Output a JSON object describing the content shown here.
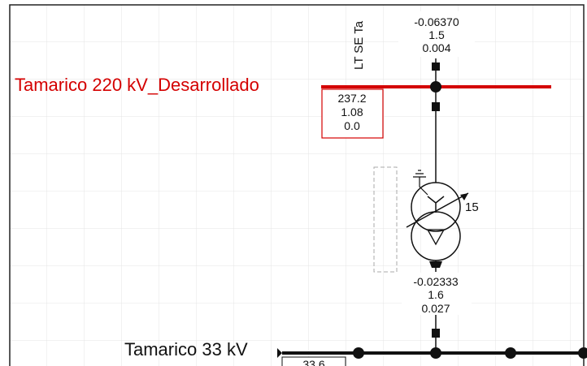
{
  "bus_high": {
    "name": "Tamarico 220 kV_Desarrollado",
    "results": [
      "237.2",
      "1.08",
      "0.0"
    ]
  },
  "line_label": "LT SE Ta",
  "branch_top": {
    "results": [
      "-0.06370",
      "1.5",
      "0.004"
    ]
  },
  "transformer": {
    "tap": "15",
    "results": [
      "-0.02333",
      "1.6",
      "0.027"
    ]
  },
  "bus_low": {
    "name": "Tamarico 33 kV",
    "results": [
      "33.6"
    ]
  }
}
